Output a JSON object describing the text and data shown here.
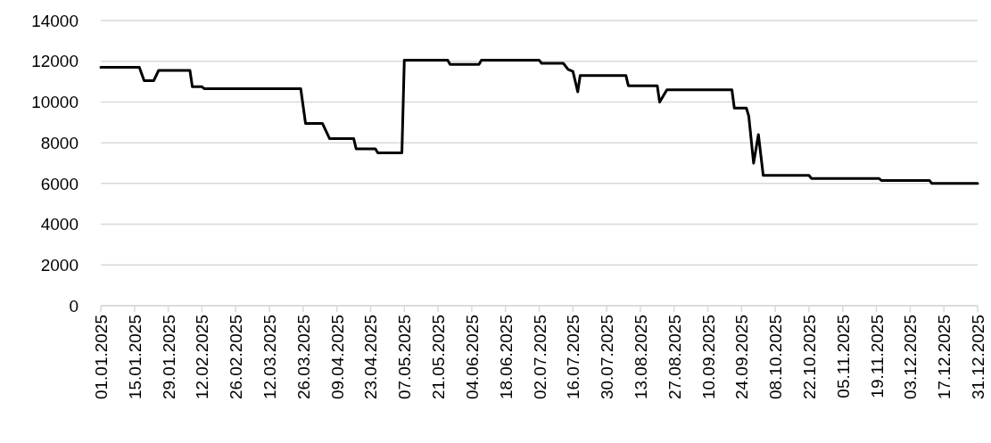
{
  "chart_data": {
    "type": "line",
    "x": [
      "2025-01-01",
      "2025-01-17",
      "2025-01-19",
      "2025-01-23",
      "2025-01-25",
      "2025-02-07",
      "2025-02-08",
      "2025-02-12",
      "2025-02-13",
      "2025-03-25",
      "2025-03-27",
      "2025-04-03",
      "2025-04-06",
      "2025-04-16",
      "2025-04-17",
      "2025-04-25",
      "2025-04-26",
      "2025-05-06",
      "2025-05-07",
      "2025-05-25",
      "2025-05-26",
      "2025-06-07",
      "2025-06-08",
      "2025-07-02",
      "2025-07-03",
      "2025-07-12",
      "2025-07-14",
      "2025-07-16",
      "2025-07-18",
      "2025-07-19",
      "2025-08-07",
      "2025-08-08",
      "2025-08-20",
      "2025-08-21",
      "2025-08-24",
      "2025-09-20",
      "2025-09-21",
      "2025-09-26",
      "2025-09-27",
      "2025-09-29",
      "2025-10-01",
      "2025-10-03",
      "2025-10-22",
      "2025-10-23",
      "2025-11-20",
      "2025-11-21",
      "2025-12-11",
      "2025-12-12",
      "2025-12-31"
    ],
    "series": [
      {
        "color": "#000000",
        "values": [
          11700,
          11700,
          11050,
          11050,
          11550,
          11550,
          10750,
          10750,
          10650,
          10650,
          8950,
          8950,
          8200,
          8200,
          7700,
          7700,
          7500,
          7500,
          12050,
          12050,
          11850,
          11850,
          12050,
          12050,
          11900,
          11900,
          11600,
          11500,
          10500,
          11300,
          11300,
          10800,
          10800,
          10000,
          10600,
          10600,
          9700,
          9700,
          9300,
          7000,
          8400,
          6400,
          6400,
          6250,
          6250,
          6150,
          6150,
          6000,
          6000
        ]
      }
    ],
    "xlim": [
      "2025-01-01",
      "2025-12-31"
    ],
    "xticks": [
      {
        "value": "2025-01-01",
        "label": "01.01.2025"
      },
      {
        "value": "2025-01-15",
        "label": "15.01.2025"
      },
      {
        "value": "2025-01-29",
        "label": "29.01.2025"
      },
      {
        "value": "2025-02-12",
        "label": "12.02.2025"
      },
      {
        "value": "2025-02-26",
        "label": "26.02.2025"
      },
      {
        "value": "2025-03-12",
        "label": "12.03.2025"
      },
      {
        "value": "2025-03-26",
        "label": "26.03.2025"
      },
      {
        "value": "2025-04-09",
        "label": "09.04.2025"
      },
      {
        "value": "2025-04-23",
        "label": "23.04.2025"
      },
      {
        "value": "2025-05-07",
        "label": "07.05.2025"
      },
      {
        "value": "2025-05-21",
        "label": "21.05.2025"
      },
      {
        "value": "2025-06-04",
        "label": "04.06.2025"
      },
      {
        "value": "2025-06-18",
        "label": "18.06.2025"
      },
      {
        "value": "2025-07-02",
        "label": "02.07.2025"
      },
      {
        "value": "2025-07-16",
        "label": "16.07.2025"
      },
      {
        "value": "2025-07-30",
        "label": "30.07.2025"
      },
      {
        "value": "2025-08-13",
        "label": "13.08.2025"
      },
      {
        "value": "2025-08-27",
        "label": "27.08.2025"
      },
      {
        "value": "2025-09-10",
        "label": "10.09.2025"
      },
      {
        "value": "2025-09-24",
        "label": "24.09.2025"
      },
      {
        "value": "2025-10-08",
        "label": "08.10.2025"
      },
      {
        "value": "2025-10-22",
        "label": "22.10.2025"
      },
      {
        "value": "2025-11-05",
        "label": "05.11.2025"
      },
      {
        "value": "2025-11-19",
        "label": "19.11.2025"
      },
      {
        "value": "2025-12-03",
        "label": "03.12.2025"
      },
      {
        "value": "2025-12-17",
        "label": "17.12.2025"
      },
      {
        "value": "2025-12-31",
        "label": "31.12.2025"
      }
    ],
    "ylim": [
      0,
      14000
    ],
    "yticks": [
      0,
      2000,
      4000,
      6000,
      8000,
      10000,
      12000,
      14000
    ],
    "grid": "y",
    "marker": "none",
    "line_style": "solid"
  }
}
